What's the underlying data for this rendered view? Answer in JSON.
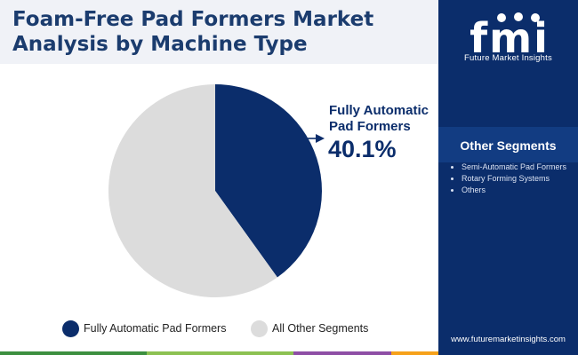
{
  "header": {
    "title_line1": "Foam-Free Pad Formers Market",
    "title_line2": "Analysis by Machine Type"
  },
  "brand": {
    "logo_letters": "fmi",
    "name": "Future Market Insights",
    "website": "www.futuremarketinsights.com"
  },
  "sidebar": {
    "title": "Other Segments",
    "items": [
      "Semi-Automatic Pad Formers",
      "Rotary Forming Systems",
      "Others"
    ]
  },
  "callout": {
    "label_line1": "Fully Automatic",
    "label_line2": "Pad Formers",
    "value": "40.1%"
  },
  "chart_data": {
    "type": "pie",
    "slices": [
      {
        "label": "Fully Automatic Pad Formers",
        "value": 40.1,
        "color": "#0b2d6b"
      },
      {
        "label": "All Other Segments",
        "value": 59.9,
        "color": "#dcdcdc"
      }
    ],
    "legend_position": "bottom"
  },
  "colors": {
    "brand_navy": "#0b2d6b",
    "title_blue": "#1b3c6e",
    "slice_grey": "#dcdcdc",
    "stripe": [
      "#3c8f3f",
      "#8cc152",
      "#8e4ea5",
      "#f6a11a"
    ]
  }
}
